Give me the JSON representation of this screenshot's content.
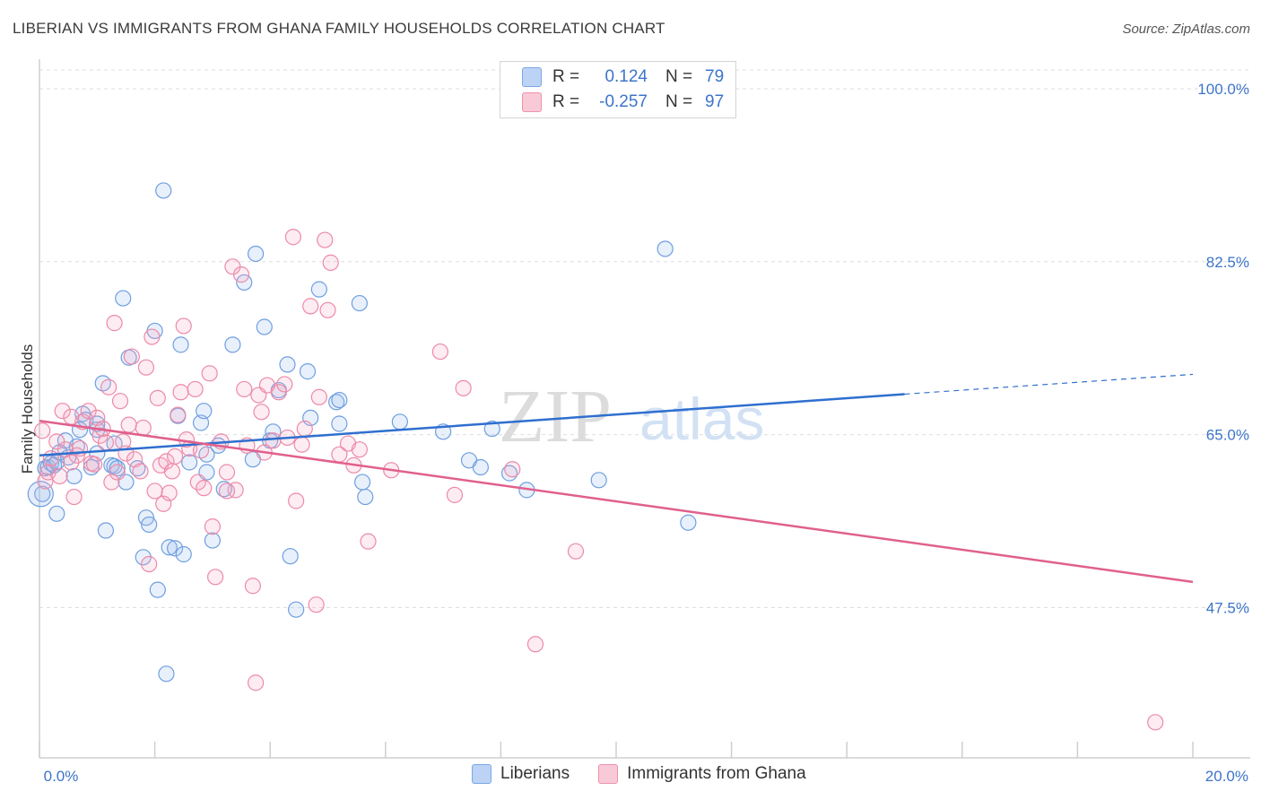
{
  "title": "LIBERIAN VS IMMIGRANTS FROM GHANA FAMILY HOUSEHOLDS CORRELATION CHART",
  "source": "Source: ZipAtlas.com",
  "watermark": {
    "zip": "ZIP",
    "atlas": "atlas"
  },
  "legend": {
    "r_label": "R =",
    "n_label": "N =",
    "rows": [
      {
        "r": "0.124",
        "n": "79",
        "color": "#7aa7e6"
      },
      {
        "r": "-0.257",
        "n": "97",
        "color": "#ee92ac"
      }
    ]
  },
  "series_legend": [
    "Liberians",
    "Immigrants from Ghana"
  ],
  "chart_data": {
    "type": "scatter",
    "title": "LIBERIAN VS IMMIGRANTS FROM GHANA FAMILY HOUSEHOLDS CORRELATION CHART",
    "xlabel": "",
    "ylabel": "Family Households",
    "xlim": [
      0,
      20
    ],
    "ylim": [
      32.3,
      101.9
    ],
    "x_tick_labels": [
      "0.0%",
      "20.0%"
    ],
    "y_ticks": [
      47.5,
      65.0,
      82.5,
      100.0
    ],
    "y_tick_labels": [
      "47.5%",
      "65.0%",
      "82.5%",
      "100.0%"
    ],
    "grid": true,
    "legend_position": "top-center",
    "series": [
      {
        "name": "Liberians",
        "color": "#6f9fe0",
        "trend": {
          "x": [
            0,
            15.0
          ],
          "y": [
            62.9,
            69.1
          ],
          "dash_to": [
            20.0,
            71.1
          ]
        },
        "points": [
          [
            0.05,
            59.0
          ],
          [
            0.1,
            61.6
          ],
          [
            0.15,
            61.7
          ],
          [
            0.2,
            62.1
          ],
          [
            0.25,
            61.9
          ],
          [
            0.3,
            57.0
          ],
          [
            0.3,
            62.2
          ],
          [
            0.35,
            63.2
          ],
          [
            0.45,
            64.4
          ],
          [
            0.5,
            62.7
          ],
          [
            0.65,
            63.8
          ],
          [
            0.7,
            65.5
          ],
          [
            0.75,
            67.1
          ],
          [
            0.8,
            66.5
          ],
          [
            0.9,
            61.7
          ],
          [
            1.0,
            63.1
          ],
          [
            1.0,
            65.5
          ],
          [
            1.1,
            70.2
          ],
          [
            1.15,
            55.3
          ],
          [
            1.25,
            61.9
          ],
          [
            1.3,
            64.1
          ],
          [
            1.3,
            61.8
          ],
          [
            1.35,
            61.6
          ],
          [
            1.45,
            78.8
          ],
          [
            1.5,
            60.2
          ],
          [
            1.55,
            72.8
          ],
          [
            1.7,
            61.6
          ],
          [
            1.8,
            52.6
          ],
          [
            1.85,
            56.6
          ],
          [
            1.9,
            55.9
          ],
          [
            2.0,
            75.5
          ],
          [
            2.05,
            49.3
          ],
          [
            2.15,
            89.7
          ],
          [
            2.2,
            40.8
          ],
          [
            2.25,
            53.6
          ],
          [
            2.35,
            53.5
          ],
          [
            2.4,
            66.9
          ],
          [
            2.45,
            74.1
          ],
          [
            2.5,
            52.9
          ],
          [
            2.6,
            62.2
          ],
          [
            2.8,
            66.2
          ],
          [
            2.85,
            67.4
          ],
          [
            2.9,
            63.0
          ],
          [
            3.0,
            54.3
          ],
          [
            3.1,
            63.9
          ],
          [
            3.2,
            59.5
          ],
          [
            3.35,
            74.1
          ],
          [
            3.55,
            80.4
          ],
          [
            3.7,
            62.5
          ],
          [
            3.75,
            83.3
          ],
          [
            3.9,
            75.9
          ],
          [
            4.0,
            64.4
          ],
          [
            4.05,
            65.3
          ],
          [
            4.15,
            69.5
          ],
          [
            4.3,
            72.1
          ],
          [
            4.35,
            52.7
          ],
          [
            4.45,
            47.3
          ],
          [
            4.65,
            71.4
          ],
          [
            4.7,
            66.7
          ],
          [
            4.85,
            79.7
          ],
          [
            5.15,
            68.3
          ],
          [
            5.2,
            68.5
          ],
          [
            5.2,
            66.1
          ],
          [
            5.55,
            78.3
          ],
          [
            5.6,
            60.2
          ],
          [
            5.65,
            58.7
          ],
          [
            6.25,
            66.3
          ],
          [
            7.0,
            65.3
          ],
          [
            7.45,
            62.4
          ],
          [
            7.65,
            61.7
          ],
          [
            7.85,
            65.6
          ],
          [
            8.15,
            61.1
          ],
          [
            8.45,
            59.4
          ],
          [
            9.7,
            60.4
          ],
          [
            10.85,
            83.8
          ],
          [
            11.25,
            56.1
          ],
          [
            1.0,
            66.1
          ],
          [
            0.6,
            60.8
          ],
          [
            2.9,
            61.2
          ]
        ]
      },
      {
        "name": "Immigrants from Ghana",
        "color": "#ec8aa8",
        "trend": {
          "x": [
            0,
            20.0
          ],
          "y": [
            66.4,
            50.1
          ]
        },
        "points": [
          [
            0.05,
            65.4
          ],
          [
            0.1,
            60.3
          ],
          [
            0.15,
            61.2
          ],
          [
            0.2,
            62.6
          ],
          [
            0.3,
            64.3
          ],
          [
            0.35,
            60.8
          ],
          [
            0.4,
            67.4
          ],
          [
            0.45,
            63.5
          ],
          [
            0.55,
            66.8
          ],
          [
            0.6,
            58.7
          ],
          [
            0.65,
            62.9
          ],
          [
            0.7,
            63.6
          ],
          [
            0.75,
            66.3
          ],
          [
            0.85,
            67.4
          ],
          [
            0.9,
            62.1
          ],
          [
            0.95,
            62.0
          ],
          [
            1.0,
            66.7
          ],
          [
            1.05,
            64.9
          ],
          [
            1.1,
            65.6
          ],
          [
            1.2,
            69.8
          ],
          [
            1.25,
            60.2
          ],
          [
            1.3,
            76.3
          ],
          [
            1.35,
            61.2
          ],
          [
            1.4,
            68.4
          ],
          [
            1.45,
            64.3
          ],
          [
            1.5,
            63.1
          ],
          [
            1.55,
            66.0
          ],
          [
            1.6,
            72.9
          ],
          [
            1.65,
            62.5
          ],
          [
            1.75,
            61.3
          ],
          [
            1.8,
            65.7
          ],
          [
            1.85,
            71.8
          ],
          [
            1.9,
            51.9
          ],
          [
            1.95,
            74.9
          ],
          [
            2.0,
            59.3
          ],
          [
            2.05,
            68.7
          ],
          [
            2.1,
            61.9
          ],
          [
            2.15,
            58.0
          ],
          [
            2.2,
            62.3
          ],
          [
            2.25,
            59.1
          ],
          [
            2.3,
            61.3
          ],
          [
            2.4,
            67.0
          ],
          [
            2.45,
            69.3
          ],
          [
            2.5,
            76.0
          ],
          [
            2.55,
            64.5
          ],
          [
            2.6,
            63.6
          ],
          [
            2.7,
            69.6
          ],
          [
            2.75,
            60.2
          ],
          [
            2.8,
            63.4
          ],
          [
            2.85,
            59.6
          ],
          [
            2.95,
            71.2
          ],
          [
            3.0,
            55.7
          ],
          [
            3.05,
            50.6
          ],
          [
            3.15,
            64.3
          ],
          [
            3.25,
            61.2
          ],
          [
            3.35,
            82.0
          ],
          [
            3.4,
            59.4
          ],
          [
            3.5,
            81.2
          ],
          [
            3.55,
            69.6
          ],
          [
            3.6,
            63.9
          ],
          [
            3.7,
            49.7
          ],
          [
            3.75,
            39.9
          ],
          [
            3.8,
            69.0
          ],
          [
            3.85,
            67.3
          ],
          [
            3.9,
            63.2
          ],
          [
            3.95,
            70.0
          ],
          [
            4.05,
            64.4
          ],
          [
            4.15,
            69.3
          ],
          [
            4.25,
            70.1
          ],
          [
            4.3,
            64.7
          ],
          [
            4.4,
            85.0
          ],
          [
            4.45,
            58.3
          ],
          [
            4.55,
            64.0
          ],
          [
            4.7,
            78.0
          ],
          [
            4.8,
            47.8
          ],
          [
            4.85,
            68.8
          ],
          [
            4.95,
            84.7
          ],
          [
            5.0,
            77.6
          ],
          [
            5.05,
            82.4
          ],
          [
            5.2,
            63.0
          ],
          [
            5.35,
            64.1
          ],
          [
            5.45,
            61.9
          ],
          [
            5.55,
            63.5
          ],
          [
            5.7,
            54.2
          ],
          [
            6.1,
            61.4
          ],
          [
            6.95,
            73.4
          ],
          [
            7.2,
            58.9
          ],
          [
            7.35,
            69.7
          ],
          [
            8.2,
            61.5
          ],
          [
            8.6,
            43.8
          ],
          [
            9.3,
            53.2
          ],
          [
            19.35,
            35.9
          ],
          [
            0.55,
            62.2
          ],
          [
            1.15,
            64.2
          ],
          [
            2.35,
            62.8
          ],
          [
            3.25,
            59.3
          ],
          [
            4.6,
            65.6
          ]
        ]
      }
    ]
  }
}
